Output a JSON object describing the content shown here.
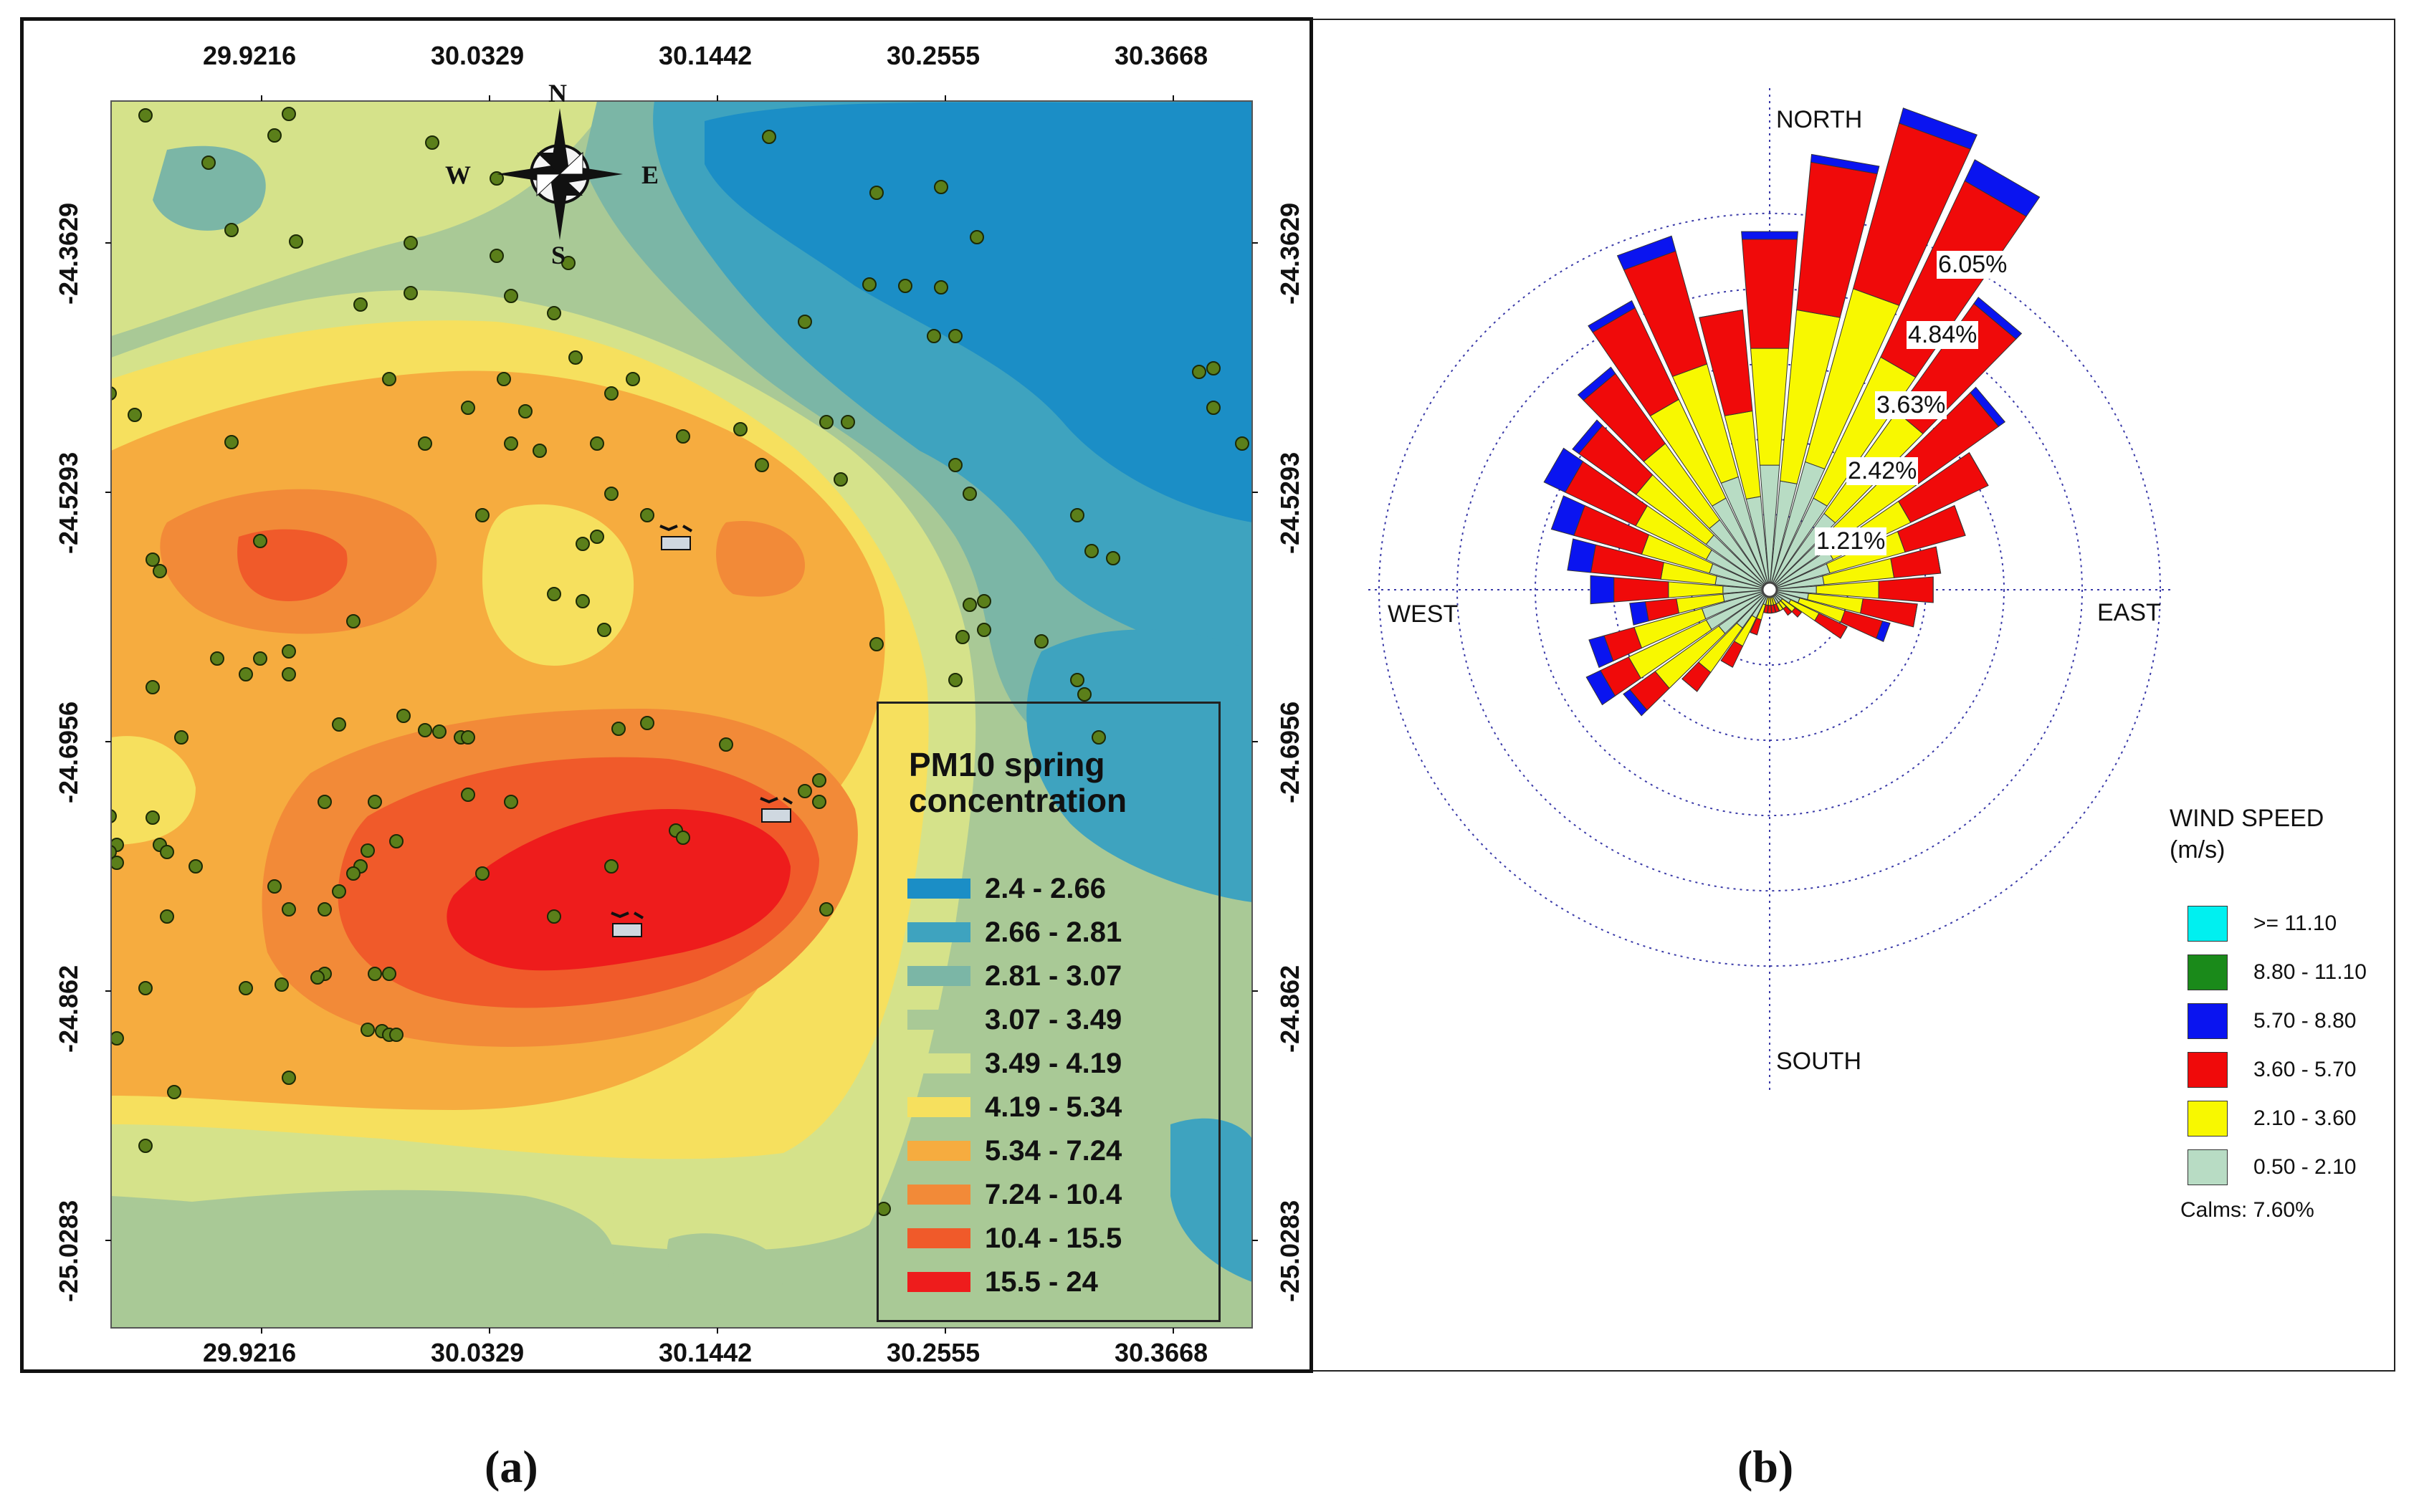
{
  "panel_a": {
    "caption": "(a)",
    "top_ticks": [
      "29.9216",
      "30.0329",
      "30.1442",
      "30.2555",
      "30.3668"
    ],
    "bottom_ticks": [
      "29.9216",
      "30.0329",
      "30.1442",
      "30.2555",
      "30.3668"
    ],
    "left_ticks": [
      "-24.3629",
      "-24.5293",
      "-24.6956",
      "-24.862",
      "-25.0283"
    ],
    "right_ticks": [
      "-24.3629",
      "-24.5293",
      "-24.6956",
      "-24.862",
      "-25.0283"
    ],
    "compass": {
      "n": "N",
      "s": "S",
      "e": "E",
      "w": "W"
    },
    "legend": {
      "title": "PM10 spring concentration",
      "classes": [
        {
          "label": "2.4 - 2.66",
          "color": "#1b8ec6"
        },
        {
          "label": "2.66 - 2.81",
          "color": "#3ea3bf"
        },
        {
          "label": "2.81 - 3.07",
          "color": "#7bb6a6"
        },
        {
          "label": "3.07 - 3.49",
          "color": "#a9c996"
        },
        {
          "label": "3.49 - 4.19",
          "color": "#d5e28a"
        },
        {
          "label": "4.19 - 5.34",
          "color": "#f6e05e"
        },
        {
          "label": "5.34 - 7.24",
          "color": "#f6ac3f"
        },
        {
          "label": "7.24 - 10.4",
          "color": "#f28a38"
        },
        {
          "label": "10.4 - 15.5",
          "color": "#f05a2a"
        },
        {
          "label": "15.5 - 24",
          "color": "#ee1c1c"
        }
      ]
    }
  },
  "panel_b": {
    "caption": "(b)",
    "directions": {
      "north": "NORTH",
      "south": "SOUTH",
      "east": "EAST",
      "west": "WEST"
    },
    "rings": [
      "1.21%",
      "2.42%",
      "3.63%",
      "4.84%",
      "6.05%"
    ],
    "legend": {
      "title_line1": "WIND SPEED",
      "title_line2": "(m/s)",
      "classes": [
        {
          "label": ">= 11.10",
          "color": "#00f0f0"
        },
        {
          "label": "8.80 - 11.10",
          "color": "#1a8a1a"
        },
        {
          "label": "5.70 - 8.80",
          "color": "#0a14f0"
        },
        {
          "label": "3.60 - 5.70",
          "color": "#f00a0a"
        },
        {
          "label": "2.10 - 3.60",
          "color": "#f8f800"
        },
        {
          "label": "0.50 - 2.10",
          "color": "#b8dcc4"
        }
      ],
      "calms": "Calms: 7.60%"
    }
  }
}
